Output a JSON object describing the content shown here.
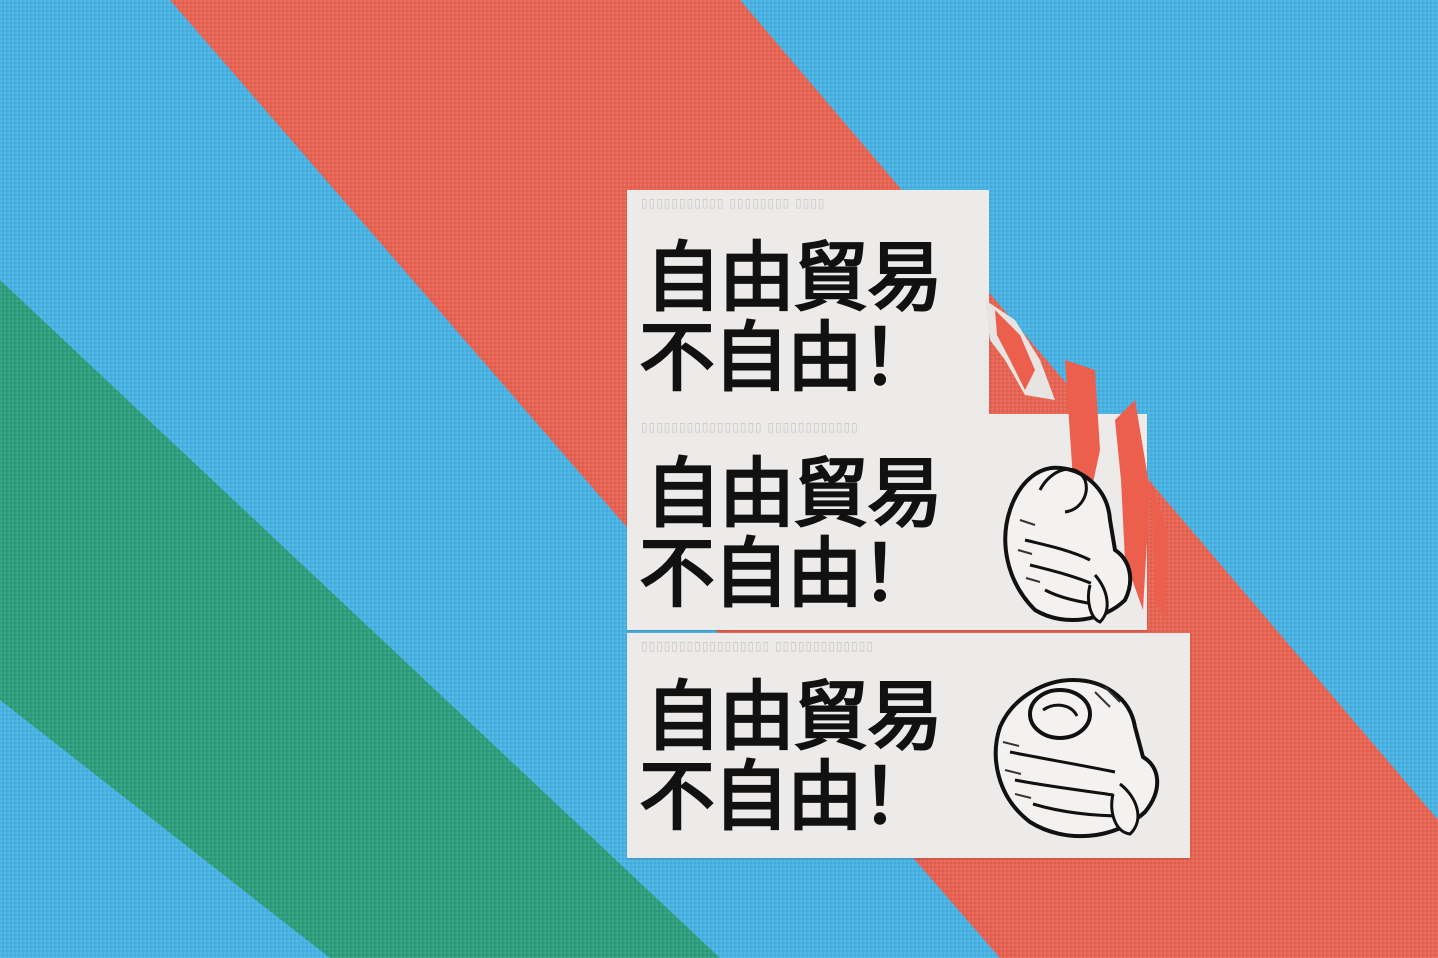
{
  "background": {
    "colors": {
      "blue": "#49b3e3",
      "red_stripe": "#ec5f4d",
      "green_stripe": "#2f9e7d"
    }
  },
  "stickers": [
    {
      "line1": "自由貿易",
      "line2": "不自由！",
      "icon": "pointing-hand-icon"
    },
    {
      "line1": "自由貿易",
      "line2": "不自由！",
      "icon": "pointing-hand-icon"
    },
    {
      "line1": "自由貿易",
      "line2": "不自由！",
      "icon": "pointing-hand-icon"
    }
  ]
}
